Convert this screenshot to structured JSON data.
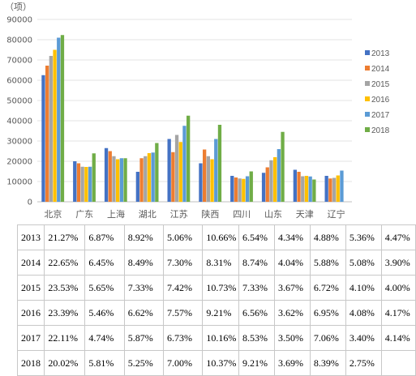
{
  "chart_data": {
    "type": "bar",
    "unit_label": "（项）",
    "categories": [
      "北京",
      "广东",
      "上海",
      "湖北",
      "江苏",
      "陕西",
      "四川",
      "山东",
      "天津",
      "辽宁"
    ],
    "ylim": [
      0,
      90000
    ],
    "yticks": [
      0,
      10000,
      20000,
      30000,
      40000,
      50000,
      60000,
      70000,
      80000,
      90000
    ],
    "grid": true,
    "legend_position": "right",
    "series": [
      {
        "name": "2013",
        "color": "#4472c4",
        "values": [
          62500,
          20000,
          26500,
          14800,
          31000,
          19000,
          12800,
          14300,
          15800,
          12800
        ]
      },
      {
        "name": "2014",
        "color": "#ed7d31",
        "values": [
          67200,
          19000,
          25000,
          21500,
          24500,
          25800,
          12000,
          17000,
          14800,
          11500
        ]
      },
      {
        "name": "2015",
        "color": "#a5a5a5",
        "values": [
          72000,
          17300,
          22500,
          22500,
          33000,
          22500,
          11500,
          20500,
          12600,
          11800
        ]
      },
      {
        "name": "2016",
        "color": "#ffc000",
        "values": [
          75000,
          17200,
          21000,
          24000,
          29500,
          21000,
          11300,
          22000,
          12800,
          13000
        ]
      },
      {
        "name": "2017",
        "color": "#5b9bd5",
        "values": [
          81000,
          17300,
          21500,
          24300,
          37500,
          31000,
          12600,
          26000,
          12500,
          15400
        ]
      },
      {
        "name": "2018",
        "color": "#70ad47",
        "values": [
          82300,
          23900,
          21500,
          29000,
          42500,
          38000,
          15000,
          34500,
          11000,
          0
        ]
      }
    ]
  },
  "table": {
    "rows": [
      [
        "2013",
        "21.27%",
        "6.87%",
        "8.92%",
        "5.06%",
        "10.66%",
        "6.54%",
        "4.34%",
        "4.88%",
        "5.36%",
        "4.47%"
      ],
      [
        "2014",
        "22.65%",
        "6.45%",
        "8.49%",
        "7.30%",
        "8.31%",
        "8.74%",
        "4.04%",
        "5.88%",
        "5.08%",
        "3.90%"
      ],
      [
        "2015",
        "23.53%",
        "5.65%",
        "7.33%",
        "7.42%",
        "10.73%",
        "7.33%",
        "3.67%",
        "6.72%",
        "4.10%",
        "4.00%"
      ],
      [
        "2016",
        "23.39%",
        "5.46%",
        "6.62%",
        "7.57%",
        "9.21%",
        "6.56%",
        "3.62%",
        "6.95%",
        "4.08%",
        "4.17%"
      ],
      [
        "2017",
        "22.11%",
        "4.74%",
        "5.87%",
        "6.73%",
        "10.16%",
        "8.53%",
        "3.50%",
        "7.06%",
        "3.40%",
        "4.14%"
      ],
      [
        "2018",
        "20.02%",
        "5.81%",
        "5.25%",
        "7.00%",
        "10.37%",
        "9.21%",
        "3.69%",
        "8.39%",
        "2.75%",
        ""
      ]
    ]
  }
}
